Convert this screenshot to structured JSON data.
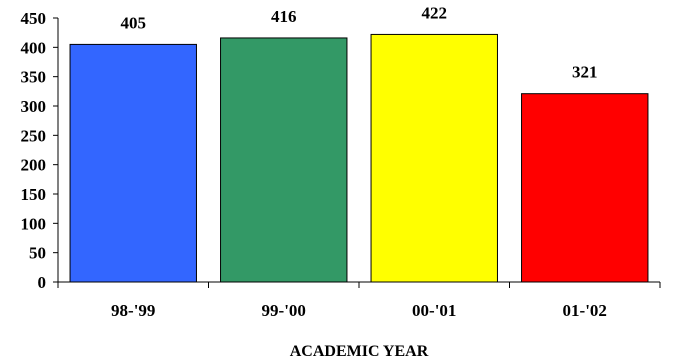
{
  "chart_data": {
    "type": "bar",
    "categories": [
      "98-'99",
      "99-'00",
      "00-'01",
      "01-'02"
    ],
    "values": [
      405,
      416,
      422,
      321
    ],
    "colors": [
      "#3366FF",
      "#339966",
      "#FFFF00",
      "#FF0000"
    ],
    "ylim": [
      0,
      450
    ],
    "yticks": [
      0,
      50,
      100,
      150,
      200,
      250,
      300,
      350,
      400,
      450
    ],
    "xlabel": "ACADEMIC YEAR",
    "ylabel": "",
    "title": "",
    "grid": false,
    "legend": "none"
  }
}
